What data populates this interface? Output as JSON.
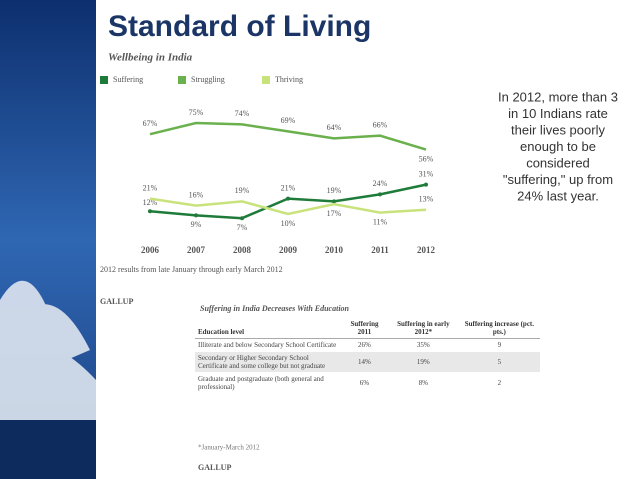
{
  "slide_title": "Standard of Living",
  "chart_data": {
    "type": "line",
    "title": "Wellbeing in India",
    "categories": [
      "2006",
      "2007",
      "2008",
      "2009",
      "2010",
      "2011",
      "2012"
    ],
    "series": [
      {
        "name": "Suffering",
        "color": "#1e7b3a",
        "values": [
          12,
          9,
          7,
          21,
          19,
          24,
          31
        ],
        "value_labels": [
          "12%",
          "9%",
          "7%",
          "21%",
          "19%",
          "24%",
          "31%"
        ]
      },
      {
        "name": "Struggling",
        "color": "#6ab04c",
        "values": [
          67,
          75,
          74,
          69,
          64,
          66,
          56
        ],
        "value_labels": [
          "67%",
          "75%",
          "74%",
          "69%",
          "64%",
          "66%",
          "56%"
        ]
      },
      {
        "name": "Thriving",
        "color": "#c8e27c",
        "values": [
          21,
          16,
          19,
          10,
          17,
          11,
          13
        ],
        "value_labels": [
          "21%",
          "16%",
          "19%",
          "10%",
          "17%",
          "11%",
          "13%"
        ]
      }
    ],
    "note": "2012 results from late January through early March 2012"
  },
  "callout": [
    "In 2012, more than 3",
    "in 10 Indians rate",
    "their lives poorly",
    "enough to be",
    "considered",
    "\"suffering,\" up from",
    "24% last year."
  ],
  "logo": "GALLUP",
  "table": {
    "title": "Suffering in India Decreases With Education",
    "header": [
      "Education level",
      "Suffering 2011",
      "Suffering in early 2012*",
      "Suffering increase (pct. pts.)"
    ],
    "rows": [
      [
        "Illiterate and below Secondary School Certificate",
        "26%",
        "35%",
        "9"
      ],
      [
        "Secondary or Higher Secondary School Certificate and some college but not graduate",
        "14%",
        "19%",
        "5"
      ],
      [
        "Graduate and postgraduate (both general and professional)",
        "6%",
        "8%",
        "2"
      ]
    ],
    "footnote": "*January-March 2012",
    "logo": "GALLUP"
  }
}
